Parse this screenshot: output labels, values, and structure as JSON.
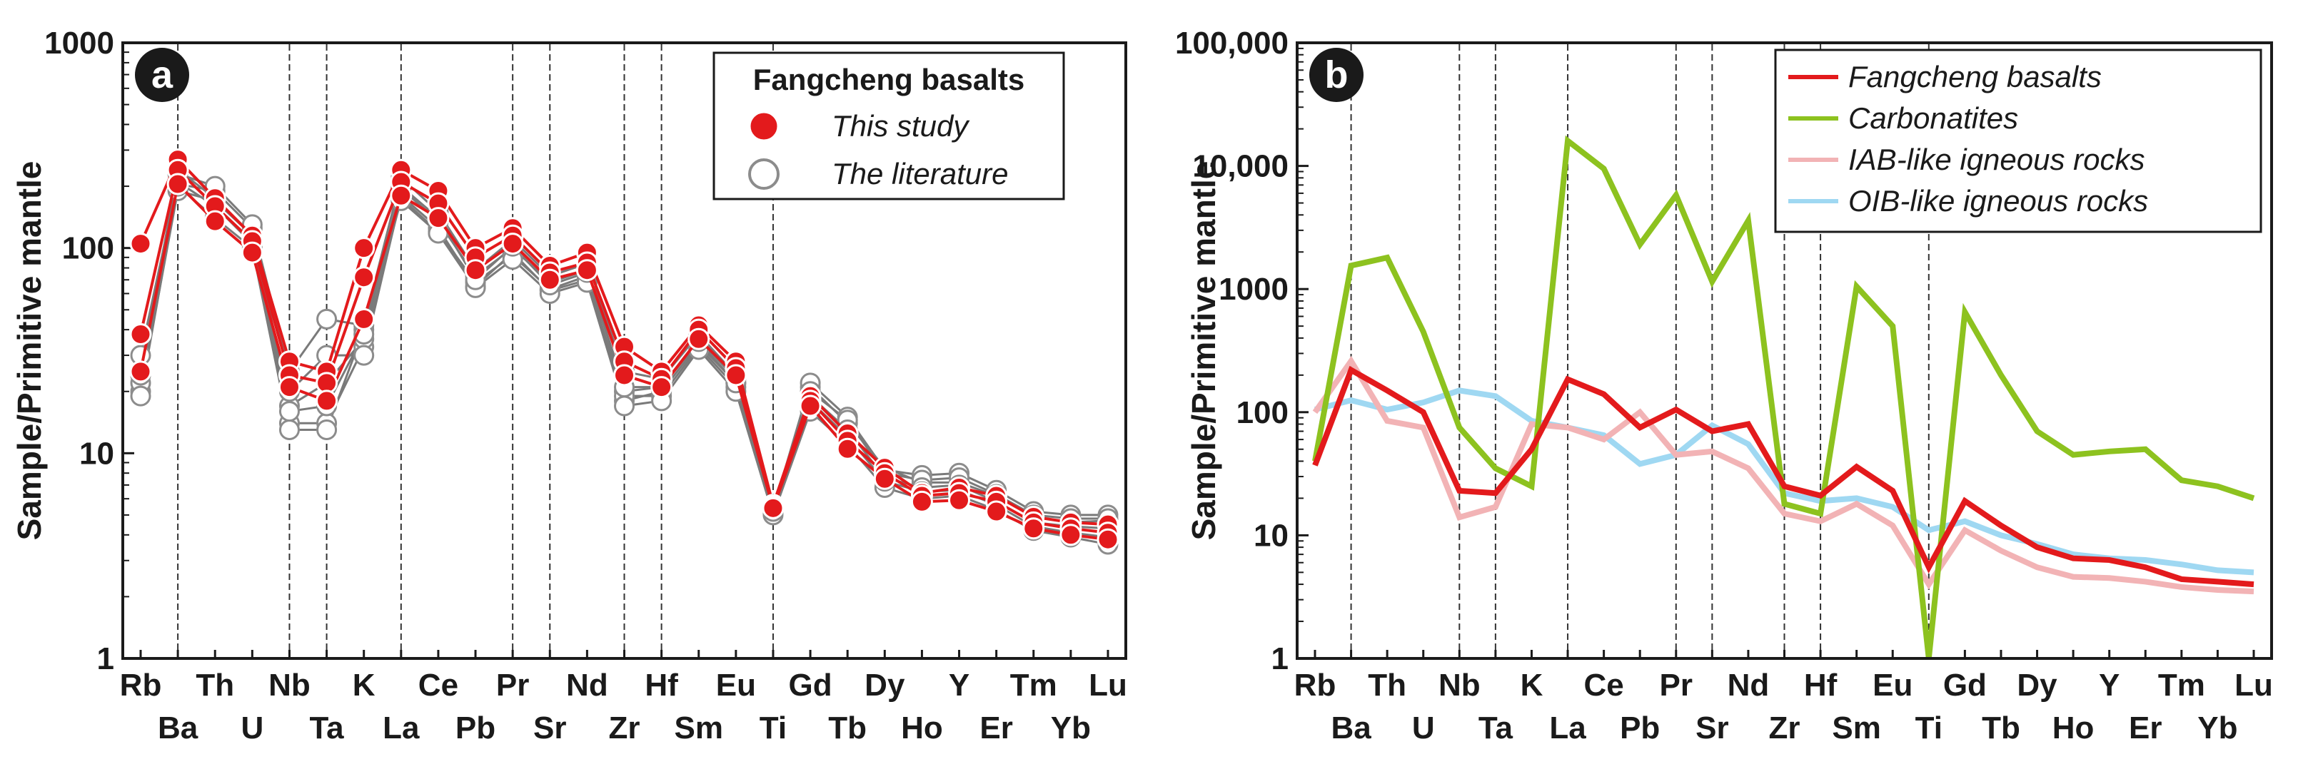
{
  "figure": {
    "panel_a_letter": "a",
    "panel_b_letter": "b"
  },
  "colors": {
    "axis": "#1a1a1a",
    "dashed": "#333333",
    "fangcheng": "#e31a1c",
    "literature_line": "#7a7a7a",
    "literature_fill": "#ffffff",
    "literature_stroke": "#8c8c8c",
    "carbonatites": "#8dc21f",
    "iab": "#f2b3b5",
    "oib": "#9fd8f2",
    "badge": "#1a1a1a"
  },
  "chart_data": [
    {
      "panel": "a",
      "type": "line",
      "ylabel": "Sample/Primitive mantle",
      "yscale": "log",
      "ylim": [
        1,
        1000
      ],
      "ytick_labels": [
        "1",
        "10",
        "100",
        "1000"
      ],
      "ytick_values": [
        1,
        10,
        100,
        1000
      ],
      "categories": [
        "Rb",
        "Ba",
        "Th",
        "U",
        "Nb",
        "Ta",
        "K",
        "La",
        "Ce",
        "Pb",
        "Pr",
        "Sr",
        "Nd",
        "Zr",
        "Hf",
        "Sm",
        "Eu",
        "Ti",
        "Gd",
        "Tb",
        "Dy",
        "Ho",
        "Y",
        "Er",
        "Tm",
        "Yb",
        "Lu"
      ],
      "dashed_at": [
        "Ba",
        "Nb",
        "Ta",
        "La",
        "Pr",
        "Sr",
        "Zr",
        "Hf",
        "Ti"
      ],
      "legend": {
        "title": "Fangcheng basalts",
        "entries": [
          "This study",
          "The literature"
        ]
      },
      "series": [
        {
          "name": "The literature",
          "values": [
            20,
            190,
            170,
            115,
            14,
            14,
            33,
            175,
            120,
            68,
            92,
            63,
            73,
            18,
            20,
            34,
            22,
            5.3,
            21,
            14,
            8.5,
            7.2,
            7.2,
            6.2,
            4.9,
            4.6,
            4.7
          ]
        },
        {
          "name": "The literature",
          "values": [
            22,
            205,
            190,
            125,
            17,
            22,
            36,
            195,
            135,
            73,
            100,
            68,
            78,
            20,
            21,
            36,
            23,
            5.3,
            22,
            15,
            8.3,
            7.8,
            8.0,
            6.6,
            5.2,
            5.0,
            5.0
          ]
        },
        {
          "name": "The literature",
          "values": [
            25,
            230,
            200,
            130,
            25,
            45,
            42,
            220,
            150,
            78,
            110,
            73,
            84,
            25,
            23,
            38,
            24,
            5.4,
            20,
            14.5,
            8.0,
            7.4,
            7.6,
            6.3,
            5.0,
            4.8,
            4.8
          ]
        },
        {
          "name": "The literature",
          "values": [
            30,
            210,
            160,
            105,
            20,
            30,
            30,
            180,
            125,
            65,
            95,
            62,
            70,
            19,
            19,
            33,
            21,
            5.2,
            19,
            13,
            7.6,
            6.8,
            7.0,
            5.8,
            4.6,
            4.4,
            4.3
          ]
        },
        {
          "name": "The literature",
          "values": [
            19,
            200,
            140,
            100,
            13,
            13,
            40,
            170,
            118,
            64,
            88,
            60,
            68,
            17,
            18,
            32,
            20,
            5.0,
            16,
            11,
            6.8,
            6.0,
            6.2,
            5.3,
            4.2,
            3.9,
            3.6
          ]
        },
        {
          "name": "The literature",
          "values": [
            24,
            240,
            175,
            115,
            16,
            17,
            38,
            200,
            140,
            70,
            102,
            66,
            76,
            21,
            21,
            35,
            22,
            5.2,
            18,
            12,
            7.3,
            6.5,
            6.6,
            5.6,
            4.4,
            4.1,
            3.9
          ]
        },
        {
          "name": "This study",
          "values": [
            105,
            270,
            175,
            115,
            28,
            25,
            100,
            240,
            190,
            100,
            125,
            82,
            95,
            33,
            25,
            42,
            28,
            5.6,
            19,
            12.5,
            8.5,
            6.4,
            6.8,
            6.2,
            4.9,
            4.6,
            4.5
          ]
        },
        {
          "name": "This study",
          "values": [
            38,
            240,
            160,
            108,
            24,
            22,
            72,
            210,
            165,
            90,
            115,
            76,
            85,
            28,
            23,
            40,
            26,
            5.5,
            18,
            11.5,
            8.0,
            6.2,
            6.4,
            5.8,
            4.6,
            4.3,
            4.1
          ]
        },
        {
          "name": "This study",
          "values": [
            25,
            205,
            135,
            95,
            21,
            18,
            45,
            180,
            140,
            78,
            105,
            70,
            78,
            24,
            21,
            36,
            24,
            5.4,
            17,
            10.5,
            7.5,
            5.8,
            5.9,
            5.2,
            4.3,
            4.0,
            3.8
          ]
        }
      ]
    },
    {
      "panel": "b",
      "type": "line",
      "ylabel": "Sample/Primitive mantle",
      "yscale": "log",
      "ylim": [
        1,
        100000
      ],
      "ytick_labels": [
        "1",
        "10",
        "100",
        "1000",
        "10,000",
        "100,000"
      ],
      "ytick_values": [
        1,
        10,
        100,
        1000,
        10000,
        100000
      ],
      "categories": [
        "Rb",
        "Ba",
        "Th",
        "U",
        "Nb",
        "Ta",
        "K",
        "La",
        "Ce",
        "Pb",
        "Pr",
        "Sr",
        "Nd",
        "Zr",
        "Hf",
        "Sm",
        "Eu",
        "Ti",
        "Gd",
        "Tb",
        "Dy",
        "Ho",
        "Y",
        "Er",
        "Tm",
        "Yb",
        "Lu"
      ],
      "dashed_at": [
        "Ba",
        "Nb",
        "Ta",
        "La",
        "Pr",
        "Sr",
        "Zr",
        "Hf",
        "Ti"
      ],
      "legend": {
        "entries": [
          "Fangcheng basalts",
          "Carbonatites",
          "IAB-like igneous rocks",
          "OIB-like igneous rocks"
        ]
      },
      "series": [
        {
          "name": "OIB-like igneous rocks",
          "values": [
            105,
            125,
            105,
            120,
            150,
            135,
            85,
            75,
            65,
            38,
            45,
            78,
            55,
            22,
            19,
            20,
            17,
            11,
            13,
            10,
            8.5,
            7.0,
            6.5,
            6.3,
            5.8,
            5.2,
            5.0
          ]
        },
        {
          "name": "IAB-like igneous rocks",
          "values": [
            100,
            260,
            85,
            75,
            14,
            17,
            80,
            75,
            60,
            100,
            45,
            48,
            35,
            15,
            13,
            18,
            12,
            4.0,
            11,
            7.5,
            5.5,
            4.6,
            4.5,
            4.2,
            3.8,
            3.6,
            3.5
          ]
        },
        {
          "name": "Carbonatites",
          "values": [
            40,
            1550,
            1800,
            450,
            75,
            35,
            25,
            16000,
            9500,
            2300,
            5800,
            1150,
            3600,
            18,
            15,
            1050,
            500,
            1.0,
            650,
            200,
            70,
            45,
            48,
            50,
            28,
            25,
            20
          ]
        },
        {
          "name": "Fangcheng basalts",
          "values": [
            37,
            220,
            150,
            100,
            23,
            22,
            50,
            185,
            140,
            75,
            105,
            70,
            80,
            25,
            21,
            36,
            23,
            5.5,
            19,
            12,
            8.0,
            6.5,
            6.3,
            5.5,
            4.4,
            4.2,
            4.0
          ]
        }
      ]
    }
  ]
}
